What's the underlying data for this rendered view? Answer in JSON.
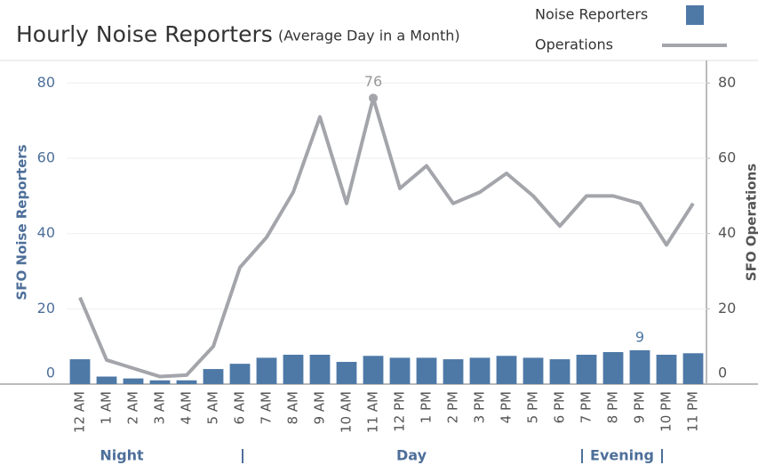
{
  "chart_data": {
    "type": "bar-line",
    "title": "Hourly Noise Reporters",
    "subtitle": "(Average Day in a Month)",
    "y_label": "SFO Noise Reporters",
    "y2_label": "SFO Operations",
    "categories": [
      "12 AM",
      "1 AM",
      "2 AM",
      "3 AM",
      "4 AM",
      "5 AM",
      "6 AM",
      "7 AM",
      "8 AM",
      "9 AM",
      "10 AM",
      "11 AM",
      "12 PM",
      "1 PM",
      "2 PM",
      "3 PM",
      "4 PM",
      "5 PM",
      "6 PM",
      "7 PM",
      "8 PM",
      "9 PM",
      "10 PM",
      "11 PM"
    ],
    "series": [
      {
        "name": "Noise Reporters",
        "type": "bar",
        "color": "#4e79a7",
        "values": [
          6.6,
          2,
          1.5,
          1,
          1,
          4,
          5.4,
          7,
          7.8,
          7.8,
          5.9,
          7.5,
          7,
          7,
          6.6,
          7,
          7.5,
          7,
          6.6,
          7.8,
          8.5,
          9,
          7.8,
          8.2
        ]
      },
      {
        "name": "Operations",
        "type": "line",
        "color": "#a3a5ab",
        "axis": "y2",
        "values": [
          23,
          6.4,
          4.2,
          2,
          2.4,
          10,
          31,
          39,
          51,
          71,
          48,
          76,
          52,
          58,
          48,
          51,
          56,
          50,
          42,
          50,
          50,
          48,
          37,
          48
        ]
      }
    ],
    "groups": [
      "Night",
      "Day",
      "Evening"
    ],
    "ylim": [
      0,
      86
    ],
    "yticks": [
      0,
      20,
      40,
      60,
      80
    ],
    "y2lim": [
      0,
      86
    ],
    "y2ticks": [
      0,
      20,
      40,
      60,
      80
    ],
    "grid": true
  }
}
